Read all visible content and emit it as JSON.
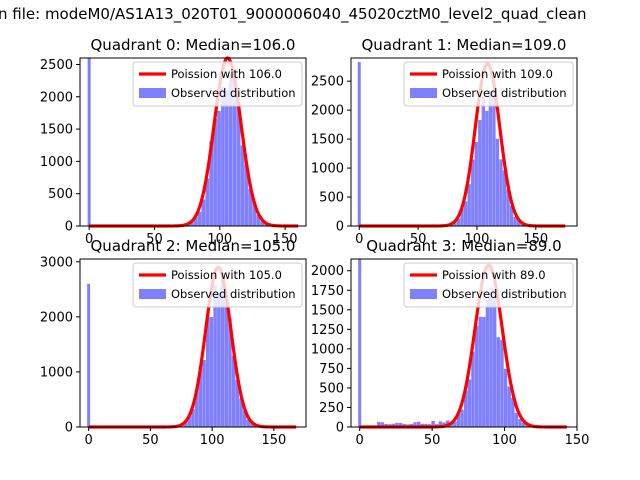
{
  "figure": {
    "suptitle": "n file: modeM0/AS1A13_020T01_9000006040_45020cztM0_level2_quad_clean"
  },
  "colors": {
    "hist": "#8080ff",
    "fit": "#ff0000",
    "axis": "#000000"
  },
  "chart_data": [
    {
      "type": "bar",
      "title": "Quadrant 0: Median=106.0",
      "xlim": [
        -7,
        166
      ],
      "ylim": [
        0,
        2600
      ],
      "xticks": [
        0,
        50,
        100,
        150
      ],
      "yticks": [
        0,
        500,
        1000,
        1500,
        2000,
        2500
      ],
      "median": 106.0,
      "zero_bin_count": 2600,
      "hist_bin_width": 3.0,
      "hist_amplitude": 2350,
      "fit_peak": 2600,
      "fit_xrange": [
        0,
        160
      ],
      "legend": {
        "position": "top-right",
        "entries": [
          "Poission with 106.0",
          "Observed distribution"
        ]
      }
    },
    {
      "type": "bar",
      "title": "Quadrant 1: Median=109.0",
      "xlim": [
        -7,
        185
      ],
      "ylim": [
        0,
        2900
      ],
      "xticks": [
        0,
        50,
        100,
        150
      ],
      "yticks": [
        0,
        500,
        1000,
        1500,
        2000,
        2500
      ],
      "median": 109.0,
      "zero_bin_count": 2830,
      "hist_bin_width": 3.0,
      "hist_amplitude": 2300,
      "fit_peak": 2800,
      "fit_xrange": [
        0,
        175
      ],
      "legend": {
        "position": "top-right",
        "entries": [
          "Poission with 109.0",
          "Observed distribution"
        ]
      }
    },
    {
      "type": "bar",
      "title": "Quadrant 2: Median=105.0",
      "xlim": [
        -7,
        176
      ],
      "ylim": [
        0,
        3050
      ],
      "xticks": [
        0,
        50,
        100,
        150
      ],
      "yticks": [
        0,
        1000,
        2000,
        3000
      ],
      "median": 105.0,
      "zero_bin_count": 2600,
      "hist_bin_width": 3.0,
      "hist_amplitude": 2750,
      "fit_peak": 2900,
      "fit_xrange": [
        0,
        168
      ],
      "legend": {
        "position": "top-right",
        "entries": [
          "Poission with 105.0",
          "Observed distribution"
        ]
      }
    },
    {
      "type": "bar",
      "title": "Quadrant 3: Median=89.0",
      "xlim": [
        -6,
        150
      ],
      "ylim": [
        0,
        2150
      ],
      "xticks": [
        0,
        50,
        100,
        150
      ],
      "yticks": [
        0,
        250,
        500,
        750,
        1000,
        1250,
        1500,
        1750,
        2000
      ],
      "median": 89.0,
      "zero_bin_count": 2150,
      "hist_bin_width": 2.5,
      "hist_amplitude": 1700,
      "fit_peak": 2070,
      "fit_xrange": [
        0,
        143
      ],
      "legend": {
        "position": "top-right",
        "entries": [
          "Poission with 89.0",
          "Observed distribution"
        ]
      }
    }
  ]
}
